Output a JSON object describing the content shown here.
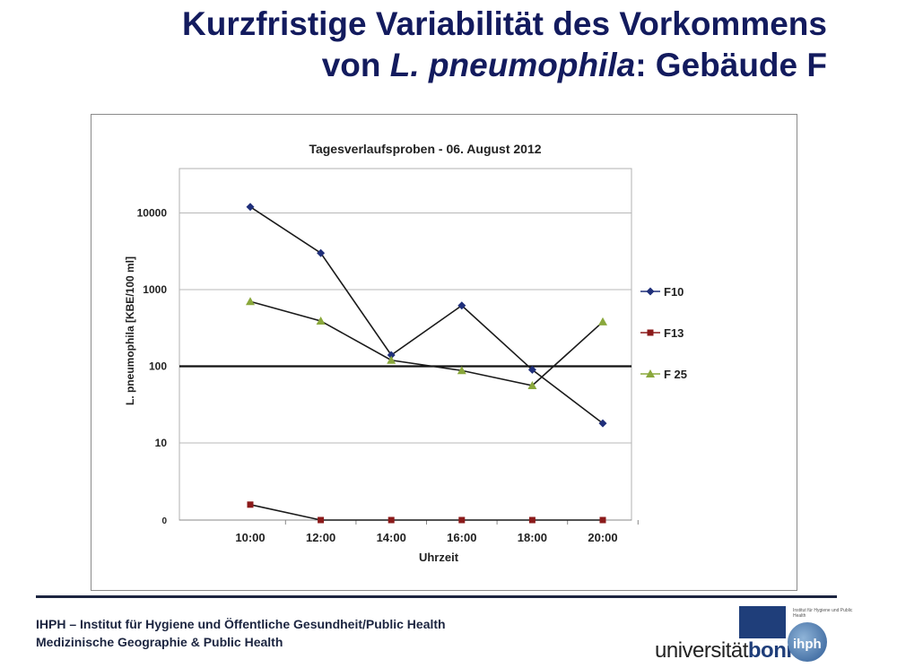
{
  "slide": {
    "title_line1": "Kurzfristige Variabilität des Vorkommens",
    "title_line2_prefix": "von ",
    "title_line2_species": "L. pneumophila",
    "title_line2_suffix": ": Gebäude F"
  },
  "footer": {
    "line1": "IHPH – Institut für Hygiene und Öffentliche Gesundheit/Public Health",
    "line2": "Medizinische Geographie & Public Health"
  },
  "logo": {
    "prefix": "universität",
    "brand": "bonn",
    "badge": "ihph",
    "badge_caption": "Institut für Hygiene und Public Health"
  },
  "chart_data": {
    "type": "line",
    "title": "Tagesverlaufsproben - 06. August 2012",
    "xlabel": "Uhrzeit",
    "ylabel": "L. pneumophila [KBE/100 ml]",
    "y_scale": "log",
    "yticks": [
      "0",
      "10",
      "100",
      "1000",
      "10000"
    ],
    "categories": [
      "10:00",
      "12:00",
      "14:00",
      "16:00",
      "18:00",
      "20:00"
    ],
    "reference_line": 100,
    "grid": true,
    "legend_position": "right",
    "series": [
      {
        "name": "F10",
        "color": "#1f2f7a",
        "marker": "diamond",
        "values": [
          12000,
          3000,
          140,
          620,
          90,
          18
        ]
      },
      {
        "name": "F13",
        "color": "#8b1a1a",
        "marker": "square",
        "values": [
          2,
          0,
          0,
          0,
          0,
          0
        ]
      },
      {
        "name": "F 25",
        "color": "#8aa83c",
        "marker": "triangle",
        "values": [
          700,
          390,
          120,
          88,
          56,
          380
        ]
      }
    ]
  }
}
